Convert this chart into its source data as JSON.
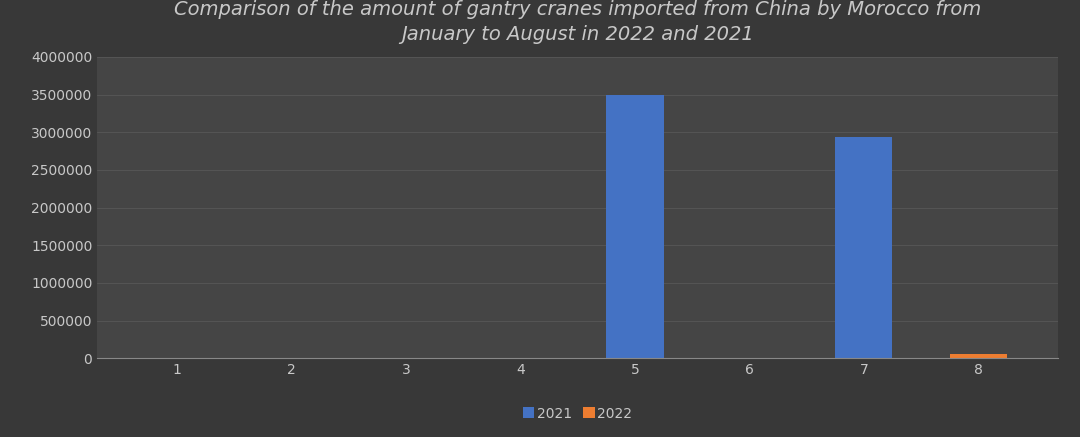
{
  "title": "Comparison of the amount of gantry cranes imported from China by Morocco from\nJanuary to August in 2022 and 2021",
  "months": [
    1,
    2,
    3,
    4,
    5,
    6,
    7,
    8
  ],
  "data_2021": [
    0,
    0,
    0,
    0,
    3490000,
    0,
    2940000,
    0
  ],
  "data_2022": [
    0,
    0,
    0,
    0,
    0,
    0,
    0,
    55000
  ],
  "color_2021": "#4472C4",
  "color_2022": "#ED7D31",
  "background_color": "#383838",
  "axes_background_color": "#454545",
  "text_color": "#C8C8C8",
  "grid_color": "#575757",
  "spine_color": "#888888",
  "ylim": [
    0,
    4000000
  ],
  "yticks": [
    0,
    500000,
    1000000,
    1500000,
    2000000,
    2500000,
    3000000,
    3500000,
    4000000
  ],
  "bar_width": 0.5,
  "title_fontsize": 14,
  "tick_fontsize": 10,
  "legend_labels": [
    "2021",
    "2022"
  ]
}
